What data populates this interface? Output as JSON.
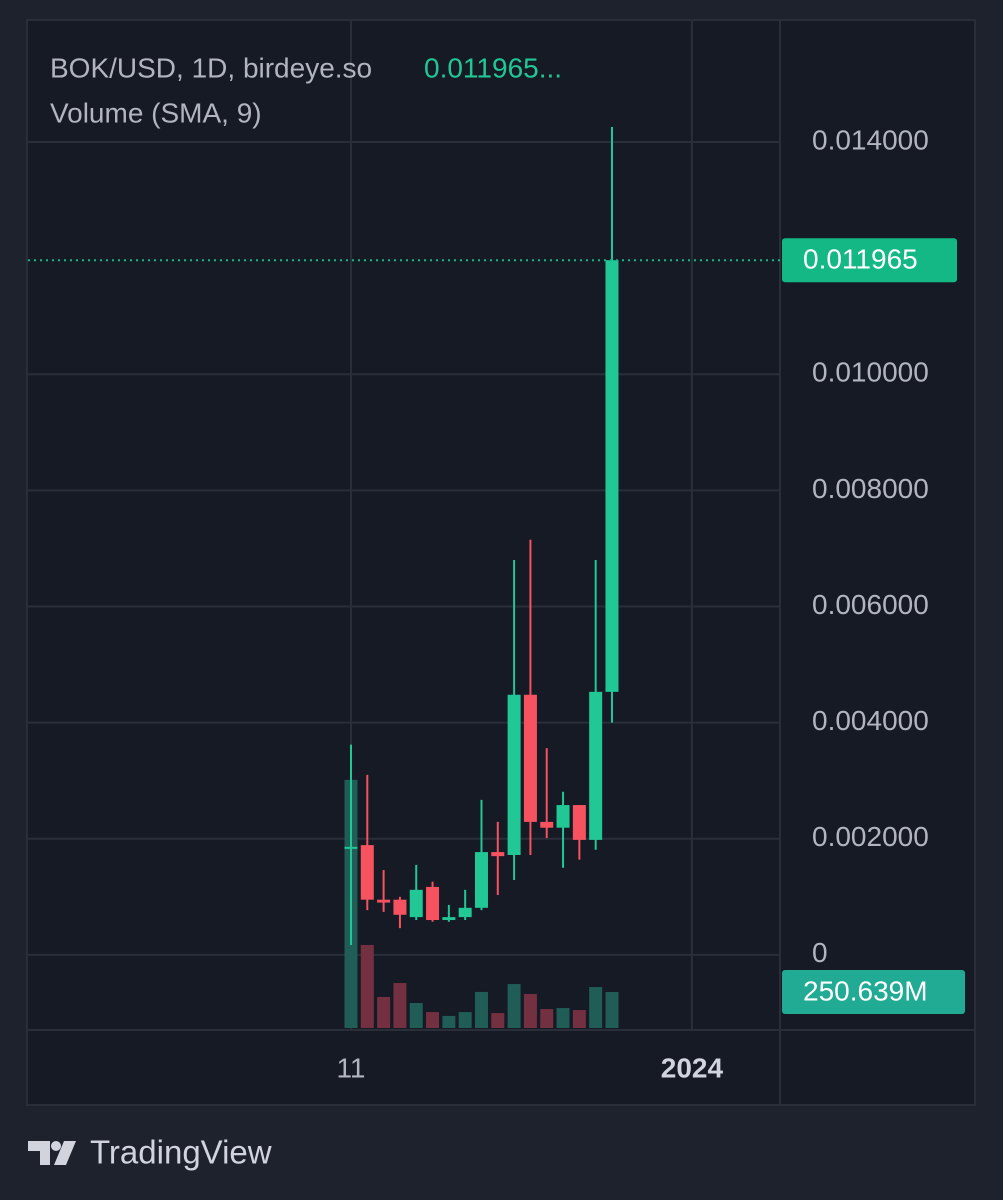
{
  "header": {
    "symbol": "BOK/USD, 1D, birdeye.so",
    "price": "0.011965...",
    "indicator": "Volume (SMA, 9)"
  },
  "footer": {
    "brand": "TradingView"
  },
  "chart_data": {
    "type": "candlestick",
    "categories": [
      null,
      null,
      null,
      null,
      null,
      null,
      null,
      null,
      null,
      null,
      null,
      null,
      null,
      null,
      null,
      null,
      null
    ],
    "open": [
      0.00184,
      0.00189,
      0.00095,
      0.00095,
      0.00065,
      0.00117,
      0.0006,
      0.00065,
      0.00081,
      0.00177,
      0.00172,
      0.00448,
      0.00229,
      0.00219,
      0.00258,
      0.00198,
      0.00453
    ],
    "high": [
      0.00362,
      0.0031,
      0.00146,
      0.001,
      0.00155,
      0.00126,
      0.00086,
      0.00112,
      0.00267,
      0.00229,
      0.0068,
      0.00715,
      0.00356,
      0.00281,
      0.00258,
      0.0068,
      0.01426
    ],
    "low": [
      0.00017,
      0.00077,
      0.00074,
      0.00046,
      0.0006,
      0.00057,
      0.00057,
      0.0006,
      0.00077,
      0.00103,
      0.00129,
      0.00172,
      0.00201,
      0.0015,
      0.00164,
      0.00181,
      0.004
    ],
    "close": [
      0.00186,
      0.00095,
      0.0009,
      0.00069,
      0.00112,
      0.0006,
      0.00065,
      0.00081,
      0.00177,
      0.0017,
      0.00448,
      0.00229,
      0.00219,
      0.00258,
      0.00198,
      0.00453,
      0.011965
    ],
    "volume": [
      1727,
      578,
      216,
      313,
      174,
      111,
      84,
      111,
      251,
      104,
      306,
      237,
      132,
      139,
      125,
      285,
      250.639
    ],
    "volume_value_label": "250.639M",
    "up_color": "#22c796",
    "down_color": "#f7525f",
    "volume_up_color": "#1f5d56",
    "volume_down_color": "#733040",
    "last_price_color": "#14b885",
    "volume_label_color": "#22ab94",
    "xlim": [
      -19.8,
      26.3
    ],
    "xticks": [
      {
        "value": 0,
        "label": "11"
      },
      {
        "value": 20.9,
        "label": "2024"
      }
    ],
    "ylim": [
      -0.00126,
      0.01593
    ],
    "yticks": [
      0,
      {
        "value": 0.002,
        "label": "0.002000"
      },
      {
        "value": 0.004,
        "label": "0.004000"
      },
      {
        "value": 0.006,
        "label": "0.006000"
      },
      {
        "value": 0.008,
        "label": "0.008000"
      },
      {
        "value": 0.01,
        "label": "0.010000"
      },
      {
        "value": 0.014,
        "label": "0.014000"
      }
    ],
    "volume_ylim": [
      0,
      6946
    ],
    "grid": true
  }
}
